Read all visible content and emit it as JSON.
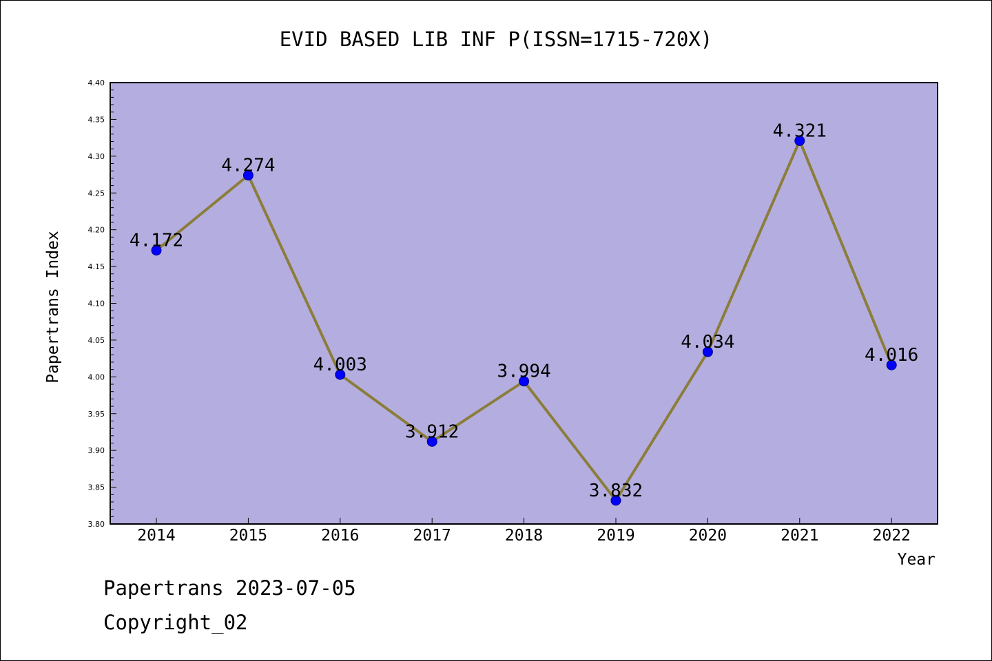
{
  "chart_data": {
    "type": "line",
    "title": "EVID BASED LIB INF P(ISSN=1715-720X)",
    "xlabel": "Year",
    "ylabel": "Papertrans Index",
    "categories": [
      "2014",
      "2015",
      "2016",
      "2017",
      "2018",
      "2019",
      "2020",
      "2021",
      "2022"
    ],
    "values": [
      4.172,
      4.274,
      4.003,
      3.912,
      3.994,
      3.832,
      4.034,
      4.321,
      4.016
    ],
    "data_labels": [
      "4.172",
      "4.274",
      "4.003",
      "3.912",
      "3.994",
      "3.832",
      "4.034",
      "4.321",
      "4.016"
    ],
    "ylim": [
      3.8,
      4.4
    ],
    "yticks": [
      "3.80",
      "3.85",
      "3.90",
      "3.95",
      "4.00",
      "4.05",
      "4.10",
      "4.15",
      "4.20",
      "4.25",
      "4.30",
      "4.35",
      "4.40"
    ],
    "grid": false,
    "legend": "none",
    "colors": {
      "plot_background": "#b4aee0",
      "line": "#8b7d3a",
      "marker": "#0000ff"
    }
  },
  "footer": {
    "line1": "Papertrans 2023-07-05",
    "line2": "Copyright_02"
  }
}
